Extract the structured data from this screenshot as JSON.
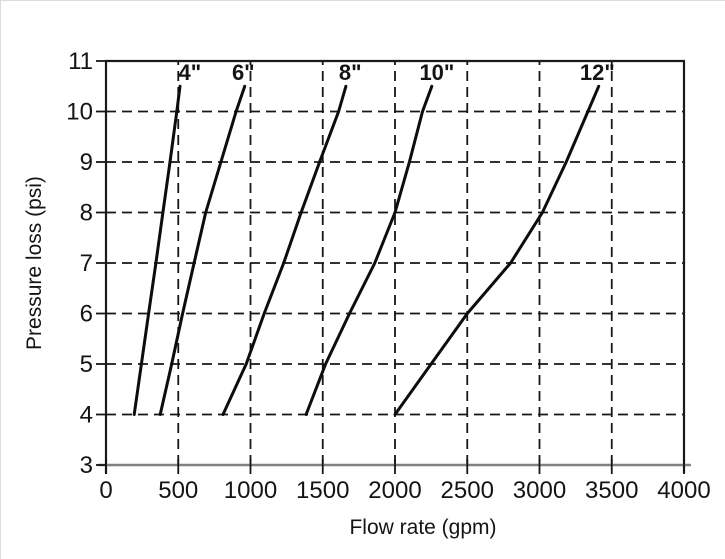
{
  "chart_data": {
    "type": "line",
    "title": "",
    "xlabel": "Flow rate (gpm)",
    "ylabel": "Pressure loss (psi)",
    "xlim": [
      0,
      4000
    ],
    "ylim": [
      3,
      11
    ],
    "xticks": [
      0,
      500,
      1000,
      1500,
      2000,
      2500,
      3000,
      3500,
      4000
    ],
    "yticks": [
      3,
      4,
      5,
      6,
      7,
      8,
      9,
      10,
      11
    ],
    "grid": "dashed",
    "legend_position": "inline-labels-above-curve-tops",
    "series": [
      {
        "id": "4in",
        "label": "4\"",
        "label_x": 580,
        "points": [
          [
            195,
            4
          ],
          [
            245,
            5
          ],
          [
            295,
            6
          ],
          [
            345,
            7
          ],
          [
            394,
            8
          ],
          [
            443,
            9
          ],
          [
            490,
            10
          ],
          [
            512,
            10.5
          ]
        ]
      },
      {
        "id": "6in",
        "label": "6\"",
        "label_x": 950,
        "points": [
          [
            375,
            4
          ],
          [
            455,
            5
          ],
          [
            530,
            6
          ],
          [
            610,
            7
          ],
          [
            690,
            8
          ],
          [
            795,
            9
          ],
          [
            900,
            10
          ],
          [
            960,
            10.5
          ]
        ]
      },
      {
        "id": "8in",
        "label": "8\"",
        "label_x": 1690,
        "points": [
          [
            810,
            4
          ],
          [
            970,
            5
          ],
          [
            1095,
            6
          ],
          [
            1230,
            7
          ],
          [
            1350,
            8
          ],
          [
            1478,
            9
          ],
          [
            1610,
            10
          ],
          [
            1660,
            10.5
          ]
        ]
      },
      {
        "id": "10in",
        "label": "10\"",
        "label_x": 2290,
        "points": [
          [
            1385,
            4
          ],
          [
            1520,
            5
          ],
          [
            1685,
            6
          ],
          [
            1860,
            7
          ],
          [
            2000,
            8
          ],
          [
            2100,
            9
          ],
          [
            2190,
            10
          ],
          [
            2255,
            10.5
          ]
        ]
      },
      {
        "id": "12in",
        "label": "12\"",
        "label_x": 3400,
        "points": [
          [
            2000,
            4
          ],
          [
            2250,
            5
          ],
          [
            2500,
            6
          ],
          [
            2800,
            7
          ],
          [
            3020,
            8
          ],
          [
            3185,
            9
          ],
          [
            3335,
            10
          ],
          [
            3410,
            10.5
          ]
        ]
      }
    ]
  },
  "colors": {
    "background": "#ffffff",
    "curve": "#0d0d0d",
    "grid": "#161616",
    "frame": "#1a1a1a",
    "axis_baseline": "#808080",
    "text": "#141414"
  }
}
